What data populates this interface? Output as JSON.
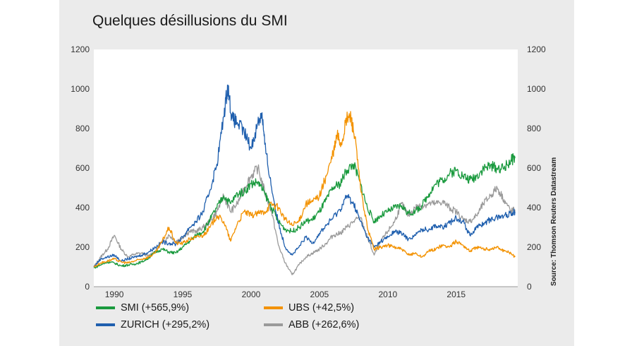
{
  "title": "Quelques désillusions du SMI",
  "source": "Source: Thomson Reuters Datastream",
  "legend": [
    {
      "label": "SMI (+565,9%)",
      "color": "#1a9a3e"
    },
    {
      "label": "UBS (+42,5%)",
      "color": "#f39200"
    },
    {
      "label": "ZURICH (+295,2%)",
      "color": "#1f5fae"
    },
    {
      "label": "ABB (+262,6%)",
      "color": "#9a9a9a"
    }
  ],
  "chart_data": {
    "type": "line",
    "xlim": [
      1988.5,
      2019.5
    ],
    "ylim": [
      0,
      1200
    ],
    "x_ticks": [
      "1990",
      "1995",
      "2000",
      "2005",
      "2010",
      "2015"
    ],
    "y_ticks": [
      "0",
      "200",
      "400",
      "600",
      "800",
      "1000",
      "1200"
    ],
    "grid": false,
    "legend_position": "bottom",
    "series": [
      {
        "name": "ABB (+262,6%)",
        "color": "#9a9a9a",
        "x": [
          1988.5,
          1989,
          1989.5,
          1990,
          1990.5,
          1991,
          1991.5,
          1992,
          1992.5,
          1993,
          1993.5,
          1994,
          1994.5,
          1995,
          1995.5,
          1996,
          1996.5,
          1997,
          1997.5,
          1998,
          1998.5,
          1999,
          1999.5,
          2000,
          2000.5,
          2001,
          2001.5,
          2002,
          2002.5,
          2003,
          2003.5,
          2004,
          2004.5,
          2005,
          2005.5,
          2006,
          2006.5,
          2007,
          2007.5,
          2008,
          2008.5,
          2009,
          2009.5,
          2010,
          2010.5,
          2011,
          2011.5,
          2012,
          2012.5,
          2013,
          2013.5,
          2014,
          2014.5,
          2015,
          2015.5,
          2016,
          2016.5,
          2017,
          2017.5,
          2018,
          2018.5,
          2019,
          2019.3
        ],
        "y": [
          100,
          150,
          190,
          260,
          190,
          150,
          165,
          170,
          155,
          180,
          225,
          260,
          230,
          250,
          280,
          280,
          300,
          330,
          380,
          460,
          380,
          420,
          500,
          560,
          600,
          480,
          380,
          210,
          120,
          60,
          110,
          150,
          170,
          190,
          220,
          260,
          270,
          300,
          330,
          350,
          250,
          160,
          230,
          280,
          330,
          420,
          360,
          400,
          410,
          420,
          420,
          430,
          400,
          380,
          340,
          330,
          360,
          420,
          460,
          500,
          440,
          380,
          390
        ]
      },
      {
        "name": "SMI (+565,9%)",
        "color": "#1a9a3e",
        "x": [
          1988.5,
          1989,
          1989.5,
          1990,
          1990.5,
          1991,
          1991.5,
          1992,
          1992.5,
          1993,
          1993.5,
          1994,
          1994.5,
          1995,
          1995.5,
          1996,
          1996.5,
          1997,
          1997.5,
          1998,
          1998.5,
          1999,
          1999.5,
          2000,
          2000.5,
          2001,
          2001.5,
          2002,
          2002.5,
          2003,
          2003.5,
          2004,
          2004.5,
          2005,
          2005.5,
          2006,
          2006.5,
          2007,
          2007.5,
          2008,
          2008.5,
          2009,
          2009.5,
          2010,
          2010.5,
          2011,
          2011.5,
          2012,
          2012.5,
          2013,
          2013.5,
          2014,
          2014.5,
          2015,
          2015.5,
          2016,
          2016.5,
          2017,
          2017.5,
          2018,
          2018.5,
          2019,
          2019.3
        ],
        "y": [
          95,
          110,
          125,
          120,
          105,
          110,
          115,
          125,
          145,
          175,
          190,
          175,
          170,
          200,
          230,
          260,
          280,
          340,
          400,
          460,
          420,
          470,
          480,
          520,
          530,
          470,
          400,
          330,
          290,
          280,
          300,
          330,
          340,
          380,
          440,
          500,
          520,
          590,
          620,
          520,
          400,
          330,
          360,
          380,
          400,
          410,
          370,
          380,
          410,
          470,
          520,
          540,
          570,
          590,
          560,
          540,
          560,
          600,
          610,
          600,
          600,
          640,
          650
        ]
      },
      {
        "name": "ZURICH (+295,2%)",
        "color": "#1f5fae",
        "x": [
          1988.5,
          1989,
          1989.5,
          1990,
          1990.5,
          1991,
          1991.5,
          1992,
          1992.5,
          1993,
          1993.5,
          1994,
          1994.5,
          1995,
          1995.5,
          1996,
          1996.5,
          1997,
          1997.5,
          1998,
          1998.3,
          1998.6,
          1999,
          1999.5,
          2000,
          2000.5,
          2000.8,
          2001,
          2001.5,
          2002,
          2002.5,
          2003,
          2003.5,
          2004,
          2004.5,
          2005,
          2005.5,
          2006,
          2006.5,
          2007,
          2007.5,
          2008,
          2008.5,
          2009,
          2009.5,
          2010,
          2010.5,
          2011,
          2011.5,
          2012,
          2012.5,
          2013,
          2013.5,
          2014,
          2014.5,
          2015,
          2015.5,
          2016,
          2016.5,
          2017,
          2017.5,
          2018,
          2018.5,
          2019,
          2019.3
        ],
        "y": [
          100,
          140,
          150,
          160,
          130,
          140,
          150,
          160,
          175,
          200,
          225,
          220,
          215,
          250,
          300,
          330,
          380,
          490,
          620,
          860,
          1020,
          850,
          830,
          780,
          700,
          830,
          880,
          720,
          500,
          320,
          200,
          160,
          200,
          250,
          220,
          270,
          310,
          350,
          390,
          460,
          420,
          330,
          250,
          200,
          230,
          250,
          280,
          270,
          240,
          260,
          290,
          290,
          310,
          300,
          320,
          350,
          330,
          260,
          300,
          320,
          340,
          350,
          360,
          370,
          380
        ]
      },
      {
        "name": "UBS (+42,5%)",
        "color": "#f39200",
        "x": [
          1988.5,
          1989,
          1989.5,
          1990,
          1990.5,
          1991,
          1991.5,
          1992,
          1992.5,
          1993,
          1993.5,
          1994,
          1994.5,
          1995,
          1995.5,
          1996,
          1996.5,
          1997,
          1997.5,
          1998,
          1998.5,
          1999,
          1999.5,
          2000,
          2000.5,
          2001,
          2001.5,
          2002,
          2002.5,
          2003,
          2003.5,
          2004,
          2004.5,
          2005,
          2005.5,
          2006,
          2006.3,
          2006.6,
          2007,
          2007.3,
          2007.6,
          2008,
          2008.5,
          2009,
          2009.5,
          2010,
          2010.5,
          2011,
          2011.5,
          2012,
          2012.5,
          2013,
          2013.5,
          2014,
          2014.5,
          2015,
          2015.5,
          2016,
          2016.5,
          2017,
          2017.5,
          2018,
          2018.5,
          2019,
          2019.3
        ],
        "y": [
          100,
          120,
          130,
          140,
          125,
          120,
          130,
          140,
          150,
          170,
          230,
          300,
          220,
          220,
          240,
          250,
          260,
          300,
          360,
          330,
          230,
          320,
          380,
          360,
          370,
          380,
          420,
          400,
          340,
          310,
          330,
          420,
          430,
          460,
          560,
          670,
          770,
          720,
          850,
          860,
          750,
          500,
          300,
          190,
          200,
          210,
          200,
          190,
          160,
          170,
          150,
          180,
          190,
          210,
          200,
          230,
          210,
          180,
          200,
          190,
          190,
          200,
          180,
          170,
          150
        ]
      }
    ]
  }
}
